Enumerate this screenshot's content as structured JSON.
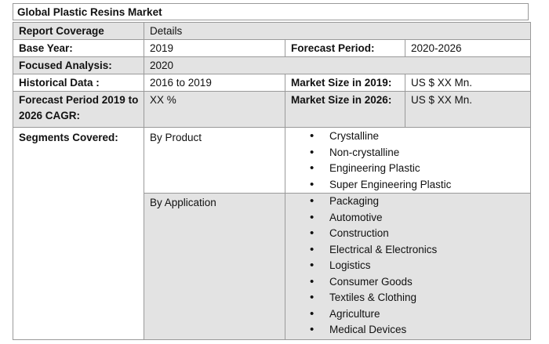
{
  "title": "Global Plastic Resins Market",
  "rows": {
    "coverage": {
      "label": "Report Coverage",
      "value": "Details"
    },
    "base_year": {
      "label": "Base Year:",
      "value": "2019",
      "label2": "Forecast Period:",
      "value2": "2020-2026"
    },
    "focused": {
      "label": "Focused Analysis:",
      "value": "2020"
    },
    "historical": {
      "label": "Historical Data :",
      "value": "2016 to 2019",
      "label2": "Market Size in 2019:",
      "value2": "US $ XX Mn."
    },
    "forecast": {
      "label": "Forecast Period 2019 to 2026 CAGR:",
      "value": "XX %",
      "label2": "Market Size in 2026:",
      "value2": "US $ XX Mn."
    }
  },
  "segments": {
    "label": "Segments Covered:",
    "product": {
      "label": "By Product",
      "items": [
        "Crystalline",
        "Non-crystalline",
        "Engineering Plastic",
        "Super Engineering Plastic"
      ]
    },
    "application": {
      "label": "By Application",
      "items": [
        "Packaging",
        "Automotive",
        "Construction",
        "Electrical & Electronics",
        "Logistics",
        "Consumer Goods",
        "Textiles & Clothing",
        "Agriculture",
        "Medical Devices"
      ]
    }
  }
}
